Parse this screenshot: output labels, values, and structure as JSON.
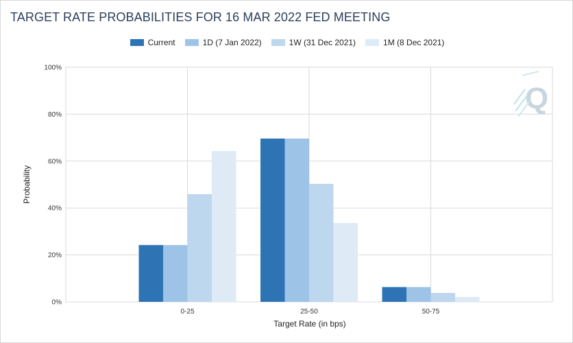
{
  "title": "TARGET RATE PROBABILITIES FOR 16 MAR 2022 FED MEETING",
  "chart_data": {
    "type": "bar",
    "title": "TARGET RATE PROBABILITIES FOR 16 MAR 2022 FED MEETING",
    "xlabel": "Target Rate (in bps)",
    "ylabel": "Probability",
    "categories": [
      "0-25",
      "25-50",
      "50-75"
    ],
    "ylim": [
      0,
      100
    ],
    "yticks": [
      "0%",
      "20%",
      "40%",
      "60%",
      "80%",
      "100%"
    ],
    "grid": true,
    "legend_position": "top",
    "series": [
      {
        "name": "Current",
        "color": "#2e74b5",
        "values": [
          24.2,
          69.6,
          6.3
        ]
      },
      {
        "name": "1D (7 Jan 2022)",
        "color": "#9dc3e6",
        "values": [
          24.2,
          69.6,
          6.3
        ]
      },
      {
        "name": "1W (31 Dec 2021)",
        "color": "#bdd7ee",
        "values": [
          45.9,
          50.3,
          3.8
        ]
      },
      {
        "name": "1M (8 Dec 2021)",
        "color": "#deebf7",
        "values": [
          64.3,
          33.6,
          2.1
        ]
      }
    ]
  },
  "watermark": {
    "text": "Q",
    "icon": "q-logo-icon"
  }
}
